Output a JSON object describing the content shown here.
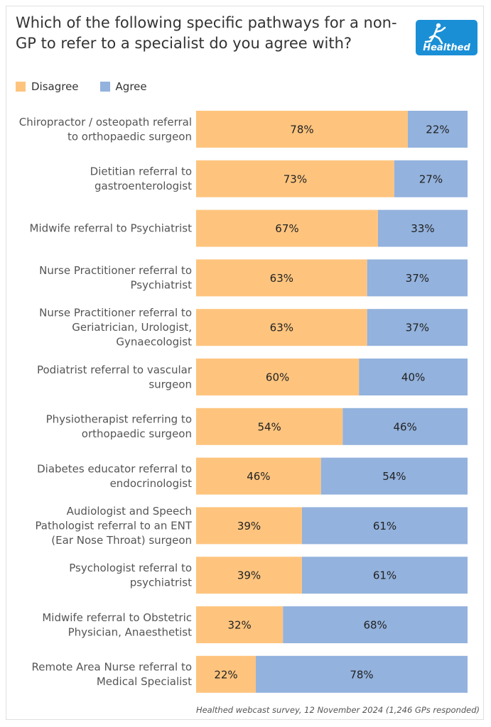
{
  "title": "Which of the following specific pathways for a non-GP to refer to a specialist do you agree with?",
  "logo": {
    "text": "Healthed",
    "icon": "running-figure-icon"
  },
  "colors": {
    "disagree": "#fec47e",
    "agree": "#93b2dd"
  },
  "footer": "Healthed webcast survey, 12 November 2024 (1,246 GPs responded)",
  "chart_data": {
    "type": "bar",
    "orientation": "horizontal",
    "stacked": true,
    "normalized": true,
    "title": "Which of the following specific pathways for a non-GP to refer to a specialist do you agree with?",
    "legend": {
      "position": "top-left",
      "entries": [
        "Disagree",
        "Agree"
      ]
    },
    "xlabel": "",
    "ylabel": "",
    "xlim": [
      0,
      100
    ],
    "grid": false,
    "categories": [
      [
        "Chiropractor / osteopath referral",
        "to orthopaedic surgeon"
      ],
      [
        "Dietitian referral to",
        "gastroenterologist"
      ],
      [
        "Midwife referral to Psychiatrist"
      ],
      [
        "Nurse Practitioner referral to",
        "Psychiatrist"
      ],
      [
        "Nurse Practitioner referral to",
        "Geriatrician, Urologist,",
        "Gynaecologist"
      ],
      [
        "Podiatrist referral to vascular",
        "surgeon"
      ],
      [
        "Physiotherapist referring to",
        "orthopaedic surgeon"
      ],
      [
        "Diabetes educator referral to",
        "endocrinologist"
      ],
      [
        "Audiologist and Speech",
        "Pathologist referral to an ENT",
        "(Ear Nose Throat) surgeon"
      ],
      [
        "Psychologist referral to",
        "psychiatrist"
      ],
      [
        "Midwife referral to Obstetric",
        "Physician, Anaesthetist"
      ],
      [
        "Remote Area Nurse referral to",
        "Medical Specialist"
      ]
    ],
    "series": [
      {
        "name": "Disagree",
        "values": [
          78,
          73,
          67,
          63,
          63,
          60,
          54,
          46,
          39,
          39,
          32,
          22
        ],
        "labels": [
          "78%",
          "73%",
          "67%",
          "63%",
          "63%",
          "60%",
          "54%",
          "46%",
          "39%",
          "39%",
          "32%",
          "22%"
        ]
      },
      {
        "name": "Agree",
        "values": [
          22,
          27,
          33,
          37,
          37,
          40,
          46,
          54,
          61,
          61,
          68,
          78
        ],
        "labels": [
          "22%",
          "27%",
          "33%",
          "37%",
          "37%",
          "40%",
          "46%",
          "54%",
          "61%",
          "61%",
          "68%",
          "78%"
        ]
      }
    ]
  }
}
